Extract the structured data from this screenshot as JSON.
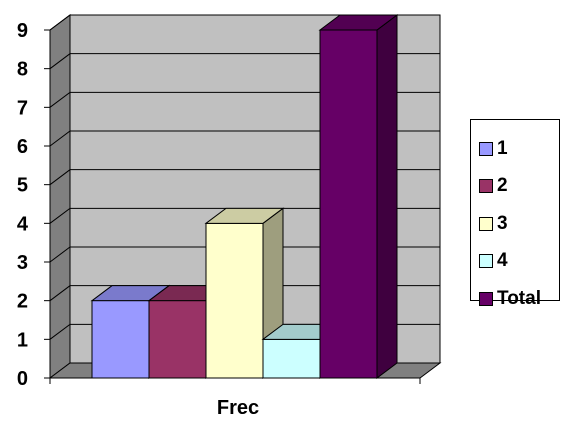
{
  "chart_data": {
    "type": "bar",
    "categories": [
      "Frec"
    ],
    "xlabel": "Frec",
    "ylabel": "",
    "ylim": [
      0,
      9
    ],
    "yticks": [
      "0",
      "1",
      "2",
      "3",
      "4",
      "5",
      "6",
      "7",
      "8",
      "9"
    ],
    "grid": true,
    "legend_position": "right",
    "series": [
      {
        "name": "1",
        "values": [
          2
        ],
        "color": "#9999ff"
      },
      {
        "name": "2",
        "values": [
          2
        ],
        "color": "#993366"
      },
      {
        "name": "3",
        "values": [
          4
        ],
        "color": "#ffffcc"
      },
      {
        "name": "4",
        "values": [
          1
        ],
        "color": "#ccffff"
      },
      {
        "name": "Total",
        "values": [
          9
        ],
        "color": "#660066"
      }
    ]
  },
  "legend": {
    "items": [
      {
        "label": "1",
        "color": "#9999ff"
      },
      {
        "label": "2",
        "color": "#993366"
      },
      {
        "label": "3",
        "color": "#ffffcc"
      },
      {
        "label": "4",
        "color": "#ccffff"
      },
      {
        "label": "Total",
        "color": "#660066"
      }
    ]
  }
}
